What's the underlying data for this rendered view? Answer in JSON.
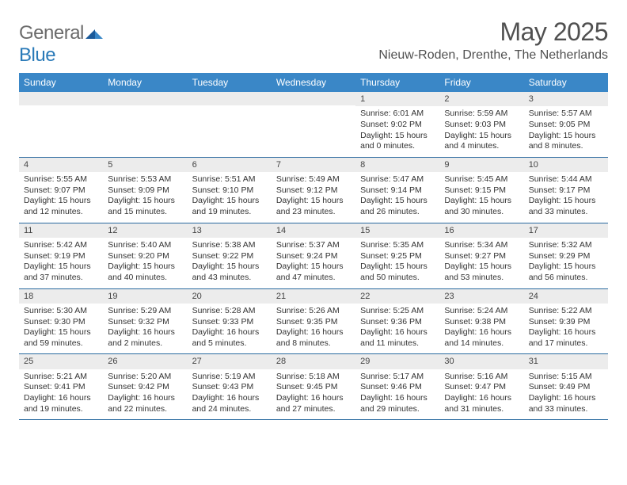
{
  "logo": {
    "word1": "General",
    "word2": "Blue"
  },
  "title": "May 2025",
  "subtitle": "Nieuw-Roden, Drenthe, The Netherlands",
  "weekdays": [
    "Sunday",
    "Monday",
    "Tuesday",
    "Wednesday",
    "Thursday",
    "Friday",
    "Saturday"
  ],
  "colors": {
    "header_bg": "#3a87c7",
    "border": "#2a6aa0",
    "daynum_bg": "#ececec",
    "text": "#333333",
    "title": "#505050"
  },
  "weeks": [
    [
      {
        "empty": true
      },
      {
        "empty": true
      },
      {
        "empty": true
      },
      {
        "empty": true
      },
      {
        "n": "1",
        "sr": "Sunrise: 6:01 AM",
        "ss": "Sunset: 9:02 PM",
        "d1": "Daylight: 15 hours",
        "d2": "and 0 minutes."
      },
      {
        "n": "2",
        "sr": "Sunrise: 5:59 AM",
        "ss": "Sunset: 9:03 PM",
        "d1": "Daylight: 15 hours",
        "d2": "and 4 minutes."
      },
      {
        "n": "3",
        "sr": "Sunrise: 5:57 AM",
        "ss": "Sunset: 9:05 PM",
        "d1": "Daylight: 15 hours",
        "d2": "and 8 minutes."
      }
    ],
    [
      {
        "n": "4",
        "sr": "Sunrise: 5:55 AM",
        "ss": "Sunset: 9:07 PM",
        "d1": "Daylight: 15 hours",
        "d2": "and 12 minutes."
      },
      {
        "n": "5",
        "sr": "Sunrise: 5:53 AM",
        "ss": "Sunset: 9:09 PM",
        "d1": "Daylight: 15 hours",
        "d2": "and 15 minutes."
      },
      {
        "n": "6",
        "sr": "Sunrise: 5:51 AM",
        "ss": "Sunset: 9:10 PM",
        "d1": "Daylight: 15 hours",
        "d2": "and 19 minutes."
      },
      {
        "n": "7",
        "sr": "Sunrise: 5:49 AM",
        "ss": "Sunset: 9:12 PM",
        "d1": "Daylight: 15 hours",
        "d2": "and 23 minutes."
      },
      {
        "n": "8",
        "sr": "Sunrise: 5:47 AM",
        "ss": "Sunset: 9:14 PM",
        "d1": "Daylight: 15 hours",
        "d2": "and 26 minutes."
      },
      {
        "n": "9",
        "sr": "Sunrise: 5:45 AM",
        "ss": "Sunset: 9:15 PM",
        "d1": "Daylight: 15 hours",
        "d2": "and 30 minutes."
      },
      {
        "n": "10",
        "sr": "Sunrise: 5:44 AM",
        "ss": "Sunset: 9:17 PM",
        "d1": "Daylight: 15 hours",
        "d2": "and 33 minutes."
      }
    ],
    [
      {
        "n": "11",
        "sr": "Sunrise: 5:42 AM",
        "ss": "Sunset: 9:19 PM",
        "d1": "Daylight: 15 hours",
        "d2": "and 37 minutes."
      },
      {
        "n": "12",
        "sr": "Sunrise: 5:40 AM",
        "ss": "Sunset: 9:20 PM",
        "d1": "Daylight: 15 hours",
        "d2": "and 40 minutes."
      },
      {
        "n": "13",
        "sr": "Sunrise: 5:38 AM",
        "ss": "Sunset: 9:22 PM",
        "d1": "Daylight: 15 hours",
        "d2": "and 43 minutes."
      },
      {
        "n": "14",
        "sr": "Sunrise: 5:37 AM",
        "ss": "Sunset: 9:24 PM",
        "d1": "Daylight: 15 hours",
        "d2": "and 47 minutes."
      },
      {
        "n": "15",
        "sr": "Sunrise: 5:35 AM",
        "ss": "Sunset: 9:25 PM",
        "d1": "Daylight: 15 hours",
        "d2": "and 50 minutes."
      },
      {
        "n": "16",
        "sr": "Sunrise: 5:34 AM",
        "ss": "Sunset: 9:27 PM",
        "d1": "Daylight: 15 hours",
        "d2": "and 53 minutes."
      },
      {
        "n": "17",
        "sr": "Sunrise: 5:32 AM",
        "ss": "Sunset: 9:29 PM",
        "d1": "Daylight: 15 hours",
        "d2": "and 56 minutes."
      }
    ],
    [
      {
        "n": "18",
        "sr": "Sunrise: 5:30 AM",
        "ss": "Sunset: 9:30 PM",
        "d1": "Daylight: 15 hours",
        "d2": "and 59 minutes."
      },
      {
        "n": "19",
        "sr": "Sunrise: 5:29 AM",
        "ss": "Sunset: 9:32 PM",
        "d1": "Daylight: 16 hours",
        "d2": "and 2 minutes."
      },
      {
        "n": "20",
        "sr": "Sunrise: 5:28 AM",
        "ss": "Sunset: 9:33 PM",
        "d1": "Daylight: 16 hours",
        "d2": "and 5 minutes."
      },
      {
        "n": "21",
        "sr": "Sunrise: 5:26 AM",
        "ss": "Sunset: 9:35 PM",
        "d1": "Daylight: 16 hours",
        "d2": "and 8 minutes."
      },
      {
        "n": "22",
        "sr": "Sunrise: 5:25 AM",
        "ss": "Sunset: 9:36 PM",
        "d1": "Daylight: 16 hours",
        "d2": "and 11 minutes."
      },
      {
        "n": "23",
        "sr": "Sunrise: 5:24 AM",
        "ss": "Sunset: 9:38 PM",
        "d1": "Daylight: 16 hours",
        "d2": "and 14 minutes."
      },
      {
        "n": "24",
        "sr": "Sunrise: 5:22 AM",
        "ss": "Sunset: 9:39 PM",
        "d1": "Daylight: 16 hours",
        "d2": "and 17 minutes."
      }
    ],
    [
      {
        "n": "25",
        "sr": "Sunrise: 5:21 AM",
        "ss": "Sunset: 9:41 PM",
        "d1": "Daylight: 16 hours",
        "d2": "and 19 minutes."
      },
      {
        "n": "26",
        "sr": "Sunrise: 5:20 AM",
        "ss": "Sunset: 9:42 PM",
        "d1": "Daylight: 16 hours",
        "d2": "and 22 minutes."
      },
      {
        "n": "27",
        "sr": "Sunrise: 5:19 AM",
        "ss": "Sunset: 9:43 PM",
        "d1": "Daylight: 16 hours",
        "d2": "and 24 minutes."
      },
      {
        "n": "28",
        "sr": "Sunrise: 5:18 AM",
        "ss": "Sunset: 9:45 PM",
        "d1": "Daylight: 16 hours",
        "d2": "and 27 minutes."
      },
      {
        "n": "29",
        "sr": "Sunrise: 5:17 AM",
        "ss": "Sunset: 9:46 PM",
        "d1": "Daylight: 16 hours",
        "d2": "and 29 minutes."
      },
      {
        "n": "30",
        "sr": "Sunrise: 5:16 AM",
        "ss": "Sunset: 9:47 PM",
        "d1": "Daylight: 16 hours",
        "d2": "and 31 minutes."
      },
      {
        "n": "31",
        "sr": "Sunrise: 5:15 AM",
        "ss": "Sunset: 9:49 PM",
        "d1": "Daylight: 16 hours",
        "d2": "and 33 minutes."
      }
    ]
  ]
}
